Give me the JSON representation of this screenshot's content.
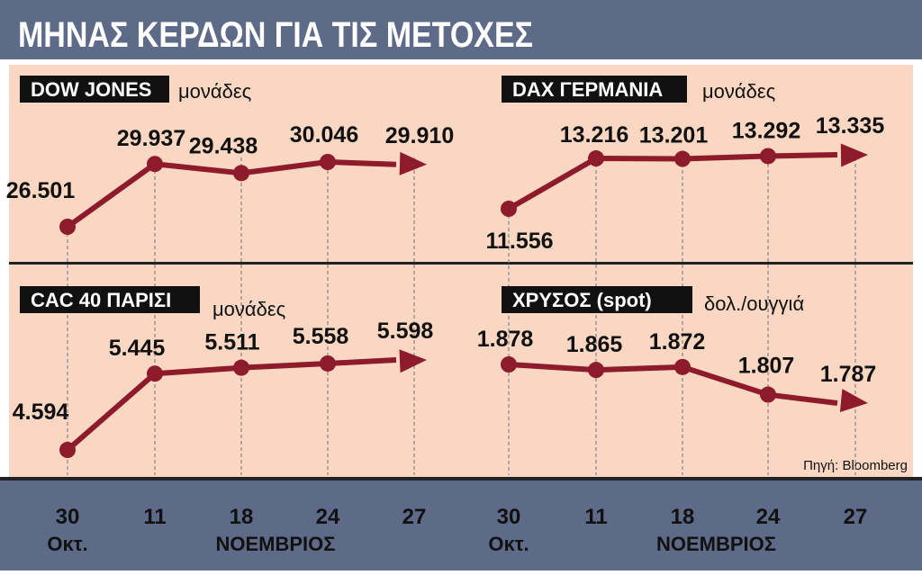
{
  "title": "ΜΗΝΑΣ ΚΕΡΔΩΝ ΓΙΑ ΤΙΣ ΜΕΤΟΧΕΣ",
  "source": "Πηγή: Bloomberg",
  "x_axis": {
    "ticks": [
      {
        "day": "30",
        "month": "Οκτ."
      },
      {
        "day": "11",
        "month": ""
      },
      {
        "day": "18",
        "month": ""
      },
      {
        "day": "24",
        "month": ""
      },
      {
        "day": "27",
        "month": ""
      }
    ],
    "month_label": "ΝΟΕΜΒΡΙΟΣ"
  },
  "colors": {
    "header_bg": "#5d6a88",
    "panel_bg": "#fad7c2",
    "line": "#8e1b2c",
    "label_bg": "#111111",
    "label_text": "#ffffff",
    "text": "#111111"
  },
  "chart_data": [
    {
      "type": "line",
      "title": "DOW JONES",
      "unit": "μονάδες",
      "x": [
        "30 Οκτ.",
        "11 ΝΟΕΜΒΡΙΟΣ",
        "18 ΝΟΕΜΒΡΙΟΣ",
        "24 ΝΟΕΜΒΡΙΟΣ",
        "27 ΝΟΕΜΒΡΙΟΣ"
      ],
      "values": [
        26501,
        29937,
        29438,
        30046,
        29910
      ],
      "labels": [
        "26.501",
        "29.937",
        "29.438",
        "30.046",
        "29.910"
      ]
    },
    {
      "type": "line",
      "title": "DAX ΓΕΡΜΑΝΙΑ",
      "unit": "μονάδες",
      "x": [
        "30 Οκτ.",
        "11 ΝΟΕΜΒΡΙΟΣ",
        "18 ΝΟΕΜΒΡΙΟΣ",
        "24 ΝΟΕΜΒΡΙΟΣ",
        "27 ΝΟΕΜΒΡΙΟΣ"
      ],
      "values": [
        11556,
        13216,
        13201,
        13292,
        13335
      ],
      "labels": [
        "11.556",
        "13.216",
        "13.201",
        "13.292",
        "13.335"
      ]
    },
    {
      "type": "line",
      "title": "CAC 40 ΠΑΡΙΣΙ",
      "unit": "μονάδες",
      "x": [
        "30 Οκτ.",
        "11 ΝΟΕΜΒΡΙΟΣ",
        "18 ΝΟΕΜΒΡΙΟΣ",
        "24 ΝΟΕΜΒΡΙΟΣ",
        "27 ΝΟΕΜΒΡΙΟΣ"
      ],
      "values": [
        4594,
        5445,
        5511,
        5558,
        5598
      ],
      "labels": [
        "4.594",
        "5.445",
        "5.511",
        "5.558",
        "5.598"
      ]
    },
    {
      "type": "line",
      "title": "ΧΡΥΣΟΣ (spot)",
      "unit": "δολ./ουγγιά",
      "x": [
        "30 Οκτ.",
        "11 ΝΟΕΜΒΡΙΟΣ",
        "18 ΝΟΕΜΒΡΙΟΣ",
        "24 ΝΟΕΜΒΡΙΟΣ",
        "27 ΝΟΕΜΒΡΙΟΣ"
      ],
      "values": [
        1878,
        1865,
        1872,
        1807,
        1787
      ],
      "labels": [
        "1.878",
        "1.865",
        "1.872",
        "1.807",
        "1.787"
      ]
    }
  ]
}
